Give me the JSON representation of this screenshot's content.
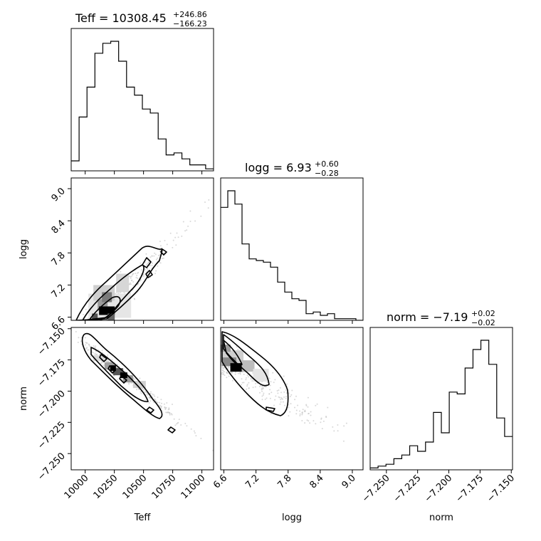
{
  "chart_data": {
    "type": "corner",
    "parameters": [
      "Teff",
      "logg",
      "norm"
    ],
    "titles": [
      {
        "param": "Teff",
        "main": "Teff = 10308.45",
        "plus": "+246.86",
        "minus": "−166.23"
      },
      {
        "param": "logg",
        "main": "logg = 6.93",
        "plus": "+0.60",
        "minus": "−0.28"
      },
      {
        "param": "norm",
        "main": "norm = −7.19",
        "plus": "+0.02",
        "minus": "−0.02"
      }
    ],
    "axis_labels": {
      "x": [
        "Teff",
        "logg",
        "norm"
      ],
      "y": [
        "logg",
        "norm"
      ]
    },
    "ranges": {
      "Teff": [
        9880,
        11100
      ],
      "logg": [
        6.54,
        9.2
      ],
      "norm": [
        -7.263,
        -7.149
      ]
    },
    "ticks": {
      "Teff": [
        10000,
        10250,
        10500,
        10750,
        11000
      ],
      "logg": [
        6.6,
        7.2,
        7.8,
        8.4,
        9.0
      ],
      "norm": [
        -7.25,
        -7.225,
        -7.2,
        -7.175,
        -7.15
      ]
    },
    "tick_labels": {
      "Teff": [
        "10000",
        "10250",
        "10500",
        "10750",
        "11000"
      ],
      "logg": [
        "6.6",
        "7.2",
        "7.8",
        "8.4",
        "9.0"
      ],
      "norm": [
        "−7.250",
        "−7.225",
        "−7.200",
        "−7.175",
        "−7.150"
      ]
    },
    "hist": {
      "Teff": [
        5,
        27,
        42,
        59,
        64,
        65,
        55,
        42,
        38,
        31,
        29,
        16,
        8,
        9,
        6,
        3,
        3,
        1
      ],
      "logg": [
        68,
        78,
        70,
        46,
        37,
        36,
        35,
        32,
        23,
        17,
        13,
        12,
        4,
        5,
        3,
        4,
        1,
        1,
        1,
        0
      ],
      "norm": [
        1,
        2,
        3,
        6,
        8,
        13,
        10,
        15,
        31,
        20,
        42,
        41,
        55,
        65,
        70,
        57,
        28,
        18
      ]
    },
    "hist_note": "relative counts per bin, equal-width bins spanning each parameter range",
    "density_cores": [
      {
        "panel": "logg_vs_Teff",
        "x": 10180,
        "y": 6.72
      },
      {
        "panel": "norm_vs_Teff",
        "x": 10300,
        "y": -7.185
      },
      {
        "panel": "norm_vs_logg",
        "x": 6.8,
        "y": -7.181
      }
    ],
    "grid": false,
    "legend": "none"
  }
}
